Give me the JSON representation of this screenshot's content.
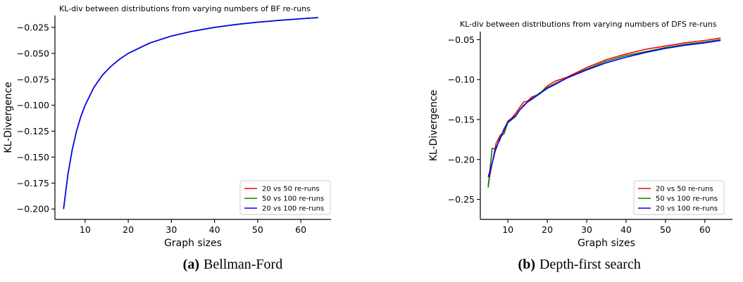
{
  "captions": [
    {
      "letter": "(a)",
      "text": "Bellman-Ford"
    },
    {
      "letter": "(b)",
      "text": "Depth-first search"
    }
  ],
  "chart_data": [
    {
      "type": "line",
      "title": "KL-div between distributions from varying numbers of BF re-runs",
      "xlabel": "Graph sizes",
      "ylabel": "KL-Divergence",
      "xlim": [
        3,
        67
      ],
      "ylim": [
        -0.21,
        -0.0135
      ],
      "xticks": [
        10,
        20,
        30,
        40,
        50,
        60
      ],
      "yticks": [
        -0.2,
        -0.175,
        -0.15,
        -0.125,
        -0.1,
        -0.075,
        -0.05,
        -0.025
      ],
      "ytick_labels": [
        "−0.200",
        "−0.175",
        "−0.150",
        "−0.125",
        "−0.100",
        "−0.075",
        "−0.050",
        "−0.025"
      ],
      "grid": false,
      "legend_position": "lower-right",
      "x": [
        5,
        6,
        7,
        8,
        9,
        10,
        12,
        14,
        16,
        18,
        20,
        25,
        30,
        35,
        40,
        45,
        50,
        55,
        60,
        64
      ],
      "series": [
        {
          "name": "20 vs 50 re-runs",
          "color": "#ff0000",
          "values": [
            -0.2,
            -0.167,
            -0.143,
            -0.125,
            -0.111,
            -0.1,
            -0.083,
            -0.071,
            -0.0625,
            -0.0556,
            -0.05,
            -0.04,
            -0.0333,
            -0.0286,
            -0.025,
            -0.0222,
            -0.02,
            -0.0182,
            -0.0167,
            -0.0156
          ]
        },
        {
          "name": "50 vs 100 re-runs",
          "color": "#008000",
          "values": [
            -0.2,
            -0.167,
            -0.143,
            -0.125,
            -0.111,
            -0.1,
            -0.083,
            -0.071,
            -0.0625,
            -0.0556,
            -0.05,
            -0.04,
            -0.0333,
            -0.0286,
            -0.025,
            -0.0222,
            -0.02,
            -0.0182,
            -0.0167,
            -0.0156
          ]
        },
        {
          "name": "20 vs 100 re-runs",
          "color": "#0000ff",
          "values": [
            -0.2,
            -0.167,
            -0.143,
            -0.125,
            -0.111,
            -0.1,
            -0.083,
            -0.071,
            -0.0625,
            -0.0556,
            -0.05,
            -0.04,
            -0.0333,
            -0.0286,
            -0.025,
            -0.0222,
            -0.02,
            -0.0182,
            -0.0167,
            -0.0156
          ]
        }
      ]
    },
    {
      "type": "line",
      "title": "KL-div between distributions from varying numbers of DFS re-runs",
      "xlabel": "Graph sizes",
      "ylabel": "KL-Divergence",
      "xlim": [
        3,
        67
      ],
      "ylim": [
        -0.275,
        -0.04
      ],
      "xticks": [
        10,
        20,
        30,
        40,
        50,
        60
      ],
      "yticks": [
        -0.25,
        -0.2,
        -0.15,
        -0.1,
        -0.05
      ],
      "ytick_labels": [
        "−0.25",
        "−0.20",
        "−0.15",
        "−0.10",
        "−0.05"
      ],
      "grid": false,
      "legend_position": "lower-right",
      "x": [
        5,
        6,
        7,
        8,
        9,
        10,
        11,
        12,
        13,
        14,
        15,
        16,
        18,
        20,
        22,
        25,
        30,
        35,
        40,
        45,
        50,
        55,
        60,
        64
      ],
      "series": [
        {
          "name": "20 vs 50 re-runs",
          "color": "#ff0000",
          "values": [
            -0.232,
            -0.205,
            -0.18,
            -0.17,
            -0.165,
            -0.152,
            -0.148,
            -0.142,
            -0.135,
            -0.128,
            -0.127,
            -0.122,
            -0.118,
            -0.108,
            -0.102,
            -0.097,
            -0.085,
            -0.075,
            -0.068,
            -0.062,
            -0.058,
            -0.054,
            -0.051,
            -0.048
          ]
        },
        {
          "name": "50 vs 100 re-runs",
          "color": "#008000",
          "values": [
            -0.235,
            -0.186,
            -0.187,
            -0.172,
            -0.168,
            -0.154,
            -0.15,
            -0.146,
            -0.138,
            -0.132,
            -0.128,
            -0.124,
            -0.117,
            -0.11,
            -0.105,
            -0.098,
            -0.087,
            -0.077,
            -0.07,
            -0.065,
            -0.06,
            -0.056,
            -0.053,
            -0.05
          ]
        },
        {
          "name": "20 vs 100 re-runs",
          "color": "#0000ff",
          "values": [
            -0.222,
            -0.205,
            -0.185,
            -0.175,
            -0.162,
            -0.153,
            -0.149,
            -0.145,
            -0.138,
            -0.133,
            -0.128,
            -0.125,
            -0.118,
            -0.111,
            -0.106,
            -0.098,
            -0.088,
            -0.079,
            -0.072,
            -0.066,
            -0.061,
            -0.057,
            -0.054,
            -0.051
          ]
        }
      ]
    }
  ]
}
